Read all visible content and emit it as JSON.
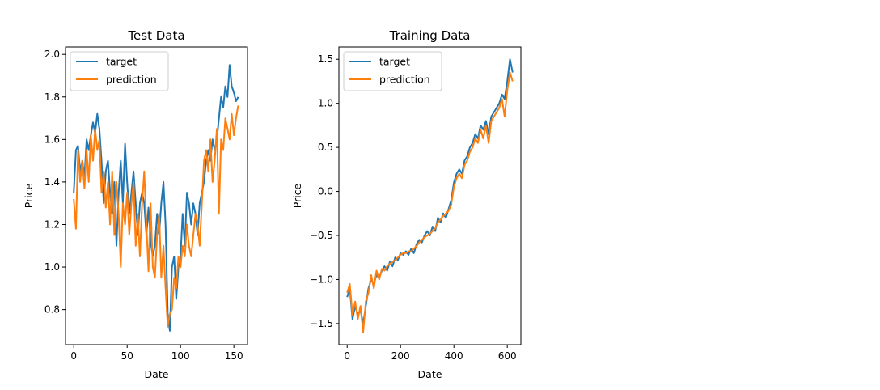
{
  "chart_data": [
    {
      "type": "line",
      "title": "Test Data",
      "xlabel": "Date",
      "ylabel": "Price",
      "xlim": [
        -7.75,
        162.75
      ],
      "ylim": [
        0.635,
        2.035
      ],
      "xticks": [
        0,
        50,
        100,
        150
      ],
      "yticks": [
        0.8,
        1.0,
        1.2,
        1.4,
        1.6,
        1.8,
        2.0
      ],
      "ytick_labels": [
        "0.8",
        "1.0",
        "1.2",
        "1.4",
        "1.6",
        "1.8",
        "2.0"
      ],
      "legend_position": "top-left",
      "grid": false,
      "series": [
        {
          "name": "target",
          "color": "#1f77b4",
          "x": [
            0,
            2,
            4,
            6,
            8,
            10,
            12,
            14,
            16,
            18,
            20,
            22,
            24,
            26,
            28,
            30,
            32,
            34,
            36,
            38,
            40,
            42,
            44,
            46,
            48,
            50,
            52,
            54,
            56,
            58,
            60,
            62,
            64,
            66,
            68,
            70,
            72,
            74,
            76,
            78,
            80,
            82,
            84,
            86,
            88,
            90,
            92,
            94,
            96,
            98,
            100,
            102,
            104,
            106,
            108,
            110,
            112,
            114,
            116,
            118,
            120,
            122,
            124,
            126,
            128,
            130,
            132,
            134,
            136,
            138,
            140,
            142,
            144,
            146,
            148,
            150,
            152,
            154
          ],
          "values": [
            1.35,
            1.55,
            1.57,
            1.45,
            1.5,
            1.42,
            1.6,
            1.55,
            1.62,
            1.68,
            1.63,
            1.72,
            1.65,
            1.5,
            1.3,
            1.45,
            1.5,
            1.35,
            1.25,
            1.4,
            1.1,
            1.35,
            1.5,
            1.3,
            1.58,
            1.4,
            1.25,
            1.35,
            1.45,
            1.3,
            1.15,
            1.3,
            1.35,
            1.3,
            1.15,
            1.28,
            1.12,
            1.05,
            1.1,
            1.25,
            1.15,
            1.3,
            1.4,
            1.2,
            0.78,
            0.7,
            1.0,
            1.05,
            0.85,
            1.0,
            1.05,
            1.25,
            1.1,
            1.35,
            1.3,
            1.2,
            1.3,
            1.25,
            1.15,
            1.3,
            1.35,
            1.4,
            1.5,
            1.55,
            1.5,
            1.6,
            1.55,
            1.6,
            1.7,
            1.8,
            1.75,
            1.85,
            1.8,
            1.95,
            1.85,
            1.82,
            1.78,
            1.8
          ]
        },
        {
          "name": "prediction",
          "color": "#ff7f0e",
          "x": [
            0,
            2,
            4,
            6,
            8,
            10,
            12,
            14,
            16,
            18,
            20,
            22,
            24,
            26,
            28,
            30,
            32,
            34,
            36,
            38,
            40,
            42,
            44,
            46,
            48,
            50,
            52,
            54,
            56,
            58,
            60,
            62,
            64,
            66,
            68,
            70,
            72,
            74,
            76,
            78,
            80,
            82,
            84,
            86,
            88,
            90,
            92,
            94,
            96,
            98,
            100,
            102,
            104,
            106,
            108,
            110,
            112,
            114,
            116,
            118,
            120,
            122,
            124,
            126,
            128,
            130,
            132,
            134,
            136,
            138,
            140,
            142,
            144,
            146,
            148,
            150,
            152,
            154
          ],
          "values": [
            1.32,
            1.18,
            1.55,
            1.4,
            1.5,
            1.37,
            1.55,
            1.4,
            1.62,
            1.5,
            1.65,
            1.55,
            1.6,
            1.35,
            1.45,
            1.28,
            1.4,
            1.2,
            1.45,
            1.15,
            1.4,
            1.25,
            1.0,
            1.3,
            1.2,
            1.35,
            1.15,
            1.3,
            1.4,
            1.1,
            1.25,
            1.05,
            1.3,
            1.45,
            1.2,
            0.98,
            1.3,
            1.0,
            0.95,
            1.15,
            1.25,
            0.95,
            1.1,
            0.9,
            0.72,
            0.78,
            0.8,
            0.95,
            0.9,
            1.05,
            1.0,
            1.1,
            1.05,
            1.2,
            1.1,
            1.05,
            1.15,
            1.25,
            1.2,
            1.1,
            1.3,
            1.5,
            1.55,
            1.45,
            1.6,
            1.4,
            1.5,
            1.65,
            1.25,
            1.6,
            1.55,
            1.7,
            1.65,
            1.6,
            1.72,
            1.62,
            1.7,
            1.76
          ]
        }
      ]
    },
    {
      "type": "line",
      "title": "Training Data",
      "xlabel": "Date",
      "ylabel": "Price",
      "xlim": [
        -31,
        651
      ],
      "ylim": [
        -1.74,
        1.64
      ],
      "xticks": [
        0,
        200,
        400,
        600
      ],
      "yticks": [
        -1.5,
        -1.0,
        -0.5,
        0.0,
        0.5,
        1.0,
        1.5
      ],
      "ytick_labels": [
        "−1.5",
        "−1.0",
        "−0.5",
        "0.0",
        "0.5",
        "1.0",
        "1.5"
      ],
      "legend_position": "top-left",
      "grid": false,
      "series": [
        {
          "name": "target",
          "color": "#1f77b4",
          "x": [
            0,
            10,
            20,
            30,
            40,
            50,
            60,
            70,
            80,
            90,
            100,
            110,
            120,
            130,
            140,
            150,
            160,
            170,
            180,
            190,
            200,
            210,
            220,
            230,
            240,
            250,
            260,
            270,
            280,
            290,
            300,
            310,
            320,
            330,
            340,
            350,
            360,
            370,
            380,
            390,
            400,
            410,
            420,
            430,
            440,
            450,
            460,
            470,
            480,
            490,
            500,
            510,
            520,
            530,
            540,
            550,
            560,
            570,
            580,
            590,
            600,
            610,
            620
          ],
          "values": [
            -1.2,
            -1.1,
            -1.45,
            -1.3,
            -1.4,
            -1.35,
            -1.5,
            -1.3,
            -1.1,
            -1.0,
            -1.05,
            -0.95,
            -0.98,
            -0.9,
            -0.85,
            -0.9,
            -0.8,
            -0.85,
            -0.75,
            -0.78,
            -0.7,
            -0.72,
            -0.68,
            -0.72,
            -0.65,
            -0.7,
            -0.6,
            -0.55,
            -0.58,
            -0.5,
            -0.45,
            -0.5,
            -0.4,
            -0.45,
            -0.3,
            -0.35,
            -0.25,
            -0.3,
            -0.2,
            -0.1,
            0.1,
            0.2,
            0.25,
            0.2,
            0.35,
            0.4,
            0.5,
            0.55,
            0.65,
            0.6,
            0.75,
            0.7,
            0.8,
            0.65,
            0.85,
            0.9,
            0.95,
            1.0,
            1.1,
            1.05,
            1.25,
            1.5,
            1.35
          ]
        },
        {
          "name": "prediction",
          "color": "#ff7f0e",
          "x": [
            0,
            10,
            20,
            30,
            40,
            50,
            60,
            70,
            80,
            90,
            100,
            110,
            120,
            130,
            140,
            150,
            160,
            170,
            180,
            190,
            200,
            210,
            220,
            230,
            240,
            250,
            260,
            270,
            280,
            290,
            300,
            310,
            320,
            330,
            340,
            350,
            360,
            370,
            380,
            390,
            400,
            410,
            420,
            430,
            440,
            450,
            460,
            470,
            480,
            490,
            500,
            510,
            520,
            530,
            540,
            550,
            560,
            570,
            580,
            590,
            600,
            610,
            620
          ],
          "values": [
            -1.15,
            -1.05,
            -1.4,
            -1.25,
            -1.45,
            -1.3,
            -1.6,
            -1.25,
            -1.15,
            -0.95,
            -1.1,
            -0.9,
            -1.0,
            -0.88,
            -0.9,
            -0.85,
            -0.82,
            -0.8,
            -0.78,
            -0.75,
            -0.72,
            -0.7,
            -0.7,
            -0.68,
            -0.68,
            -0.65,
            -0.62,
            -0.58,
            -0.55,
            -0.52,
            -0.5,
            -0.48,
            -0.45,
            -0.42,
            -0.35,
            -0.32,
            -0.28,
            -0.25,
            -0.22,
            -0.15,
            0.05,
            0.15,
            0.2,
            0.15,
            0.3,
            0.35,
            0.45,
            0.5,
            0.6,
            0.55,
            0.7,
            0.6,
            0.75,
            0.55,
            0.8,
            0.85,
            0.9,
            0.95,
            1.05,
            0.85,
            1.15,
            1.35,
            1.25
          ]
        }
      ]
    }
  ]
}
